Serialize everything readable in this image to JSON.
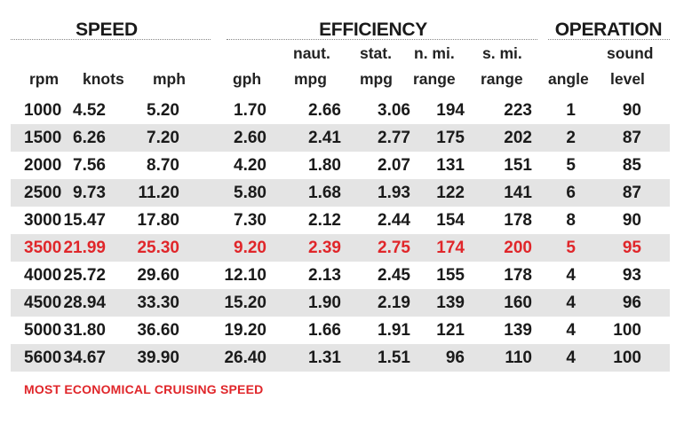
{
  "groups": {
    "speed": "SPEED",
    "efficiency": "EFFICIENCY",
    "operation": "OPERATION"
  },
  "headers": {
    "rpm": "rpm",
    "knots": "knots",
    "mph": "mph",
    "gph": "gph",
    "naut_top": "naut.",
    "naut_bottom": "mpg",
    "stat_top": "stat.",
    "stat_bottom": "mpg",
    "nmi_top": "n. mi.",
    "nmi_bottom": "range",
    "smi_top": "s. mi.",
    "smi_bottom": "range",
    "angle": "angle",
    "sound_top": "sound",
    "sound_bottom": "level"
  },
  "rows": [
    {
      "rpm": "1000",
      "knots": "4.52",
      "mph": "5.20",
      "gph": "1.70",
      "naut_mpg": "2.66",
      "stat_mpg": "3.06",
      "nmi_range": "194",
      "smi_range": "223",
      "angle": "1",
      "sound": "90"
    },
    {
      "rpm": "1500",
      "knots": "6.26",
      "mph": "7.20",
      "gph": "2.60",
      "naut_mpg": "2.41",
      "stat_mpg": "2.77",
      "nmi_range": "175",
      "smi_range": "202",
      "angle": "2",
      "sound": "87"
    },
    {
      "rpm": "2000",
      "knots": "7.56",
      "mph": "8.70",
      "gph": "4.20",
      "naut_mpg": "1.80",
      "stat_mpg": "2.07",
      "nmi_range": "131",
      "smi_range": "151",
      "angle": "5",
      "sound": "85"
    },
    {
      "rpm": "2500",
      "knots": "9.73",
      "mph": "11.20",
      "gph": "5.80",
      "naut_mpg": "1.68",
      "stat_mpg": "1.93",
      "nmi_range": "122",
      "smi_range": "141",
      "angle": "6",
      "sound": "87"
    },
    {
      "rpm": "3000",
      "knots": "15.47",
      "mph": "17.80",
      "gph": "7.30",
      "naut_mpg": "2.12",
      "stat_mpg": "2.44",
      "nmi_range": "154",
      "smi_range": "178",
      "angle": "8",
      "sound": "90"
    },
    {
      "rpm": "3500",
      "knots": "21.99",
      "mph": "25.30",
      "gph": "9.20",
      "naut_mpg": "2.39",
      "stat_mpg": "2.75",
      "nmi_range": "174",
      "smi_range": "200",
      "angle": "5",
      "sound": "95"
    },
    {
      "rpm": "4000",
      "knots": "25.72",
      "mph": "29.60",
      "gph": "12.10",
      "naut_mpg": "2.13",
      "stat_mpg": "2.45",
      "nmi_range": "155",
      "smi_range": "178",
      "angle": "4",
      "sound": "93"
    },
    {
      "rpm": "4500",
      "knots": "28.94",
      "mph": "33.30",
      "gph": "15.20",
      "naut_mpg": "1.90",
      "stat_mpg": "2.19",
      "nmi_range": "139",
      "smi_range": "160",
      "angle": "4",
      "sound": "96"
    },
    {
      "rpm": "5000",
      "knots": "31.80",
      "mph": "36.60",
      "gph": "19.20",
      "naut_mpg": "1.66",
      "stat_mpg": "1.91",
      "nmi_range": "121",
      "smi_range": "139",
      "angle": "4",
      "sound": "100"
    },
    {
      "rpm": "5600",
      "knots": "34.67",
      "mph": "39.90",
      "gph": "26.40",
      "naut_mpg": "1.31",
      "stat_mpg": "1.51",
      "nmi_range": "96",
      "smi_range": "110",
      "angle": "4",
      "sound": "100"
    }
  ],
  "highlight_color": "#e0262a",
  "footnote": "MOST ECONOMICAL CRUISING SPEED"
}
